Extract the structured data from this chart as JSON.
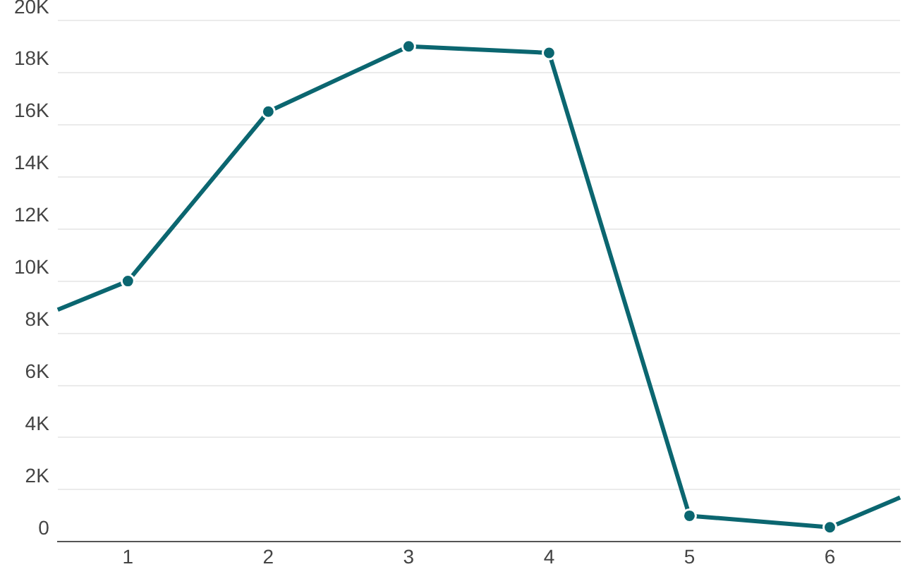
{
  "chart_data": {
    "type": "line",
    "x": [
      0.5,
      1,
      2,
      3,
      4,
      5,
      6,
      6.5
    ],
    "series": [
      {
        "color": "#0b6670",
        "values": [
          8900,
          10000,
          16500,
          19000,
          18750,
          1000,
          560,
          1700
        ]
      }
    ],
    "xlim": [
      0.5,
      6.5
    ],
    "xticks": [
      1,
      2,
      3,
      4,
      5,
      6
    ],
    "ylim": [
      0,
      20000
    ],
    "yticks": [
      {
        "value": 0,
        "label": "0"
      },
      {
        "value": 2000,
        "label": "2K"
      },
      {
        "value": 4000,
        "label": "4K"
      },
      {
        "value": 6000,
        "label": "6K"
      },
      {
        "value": 8000,
        "label": "8K"
      },
      {
        "value": 10000,
        "label": "10K"
      },
      {
        "value": 12000,
        "label": "12K"
      },
      {
        "value": 14000,
        "label": "14K"
      },
      {
        "value": 16000,
        "label": "16K"
      },
      {
        "value": 18000,
        "label": "18K"
      },
      {
        "value": 20000,
        "label": "20K"
      }
    ],
    "grid": "y",
    "legend": false,
    "marker": "circle",
    "line_style": "solid"
  }
}
